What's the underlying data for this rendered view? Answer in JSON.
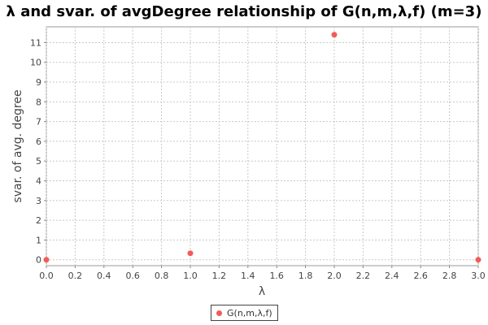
{
  "chart_data": {
    "type": "scatter",
    "title": "λ and svar. of avgDegree relationship of G(n,m,λ,f) (m=3)",
    "xlabel": "λ",
    "ylabel": "svar. of avg. degree",
    "xlim": [
      0.0,
      3.0
    ],
    "ylim": [
      -0.3,
      11.8
    ],
    "x_ticks": [
      "0.0",
      "0.2",
      "0.4",
      "0.6",
      "0.8",
      "1.0",
      "1.2",
      "1.4",
      "1.6",
      "1.8",
      "2.0",
      "2.2",
      "2.4",
      "2.6",
      "2.8",
      "3.0"
    ],
    "y_ticks": [
      "0",
      "1",
      "2",
      "3",
      "4",
      "5",
      "6",
      "7",
      "8",
      "9",
      "10",
      "11"
    ],
    "grid": true,
    "legend_position": "bottom",
    "series": [
      {
        "name": "G(n,m,λ,f)",
        "color": "#f25a5a",
        "x": [
          0.0,
          1.0,
          2.0,
          3.0
        ],
        "y": [
          0.0,
          0.33,
          11.4,
          0.0
        ]
      }
    ]
  }
}
